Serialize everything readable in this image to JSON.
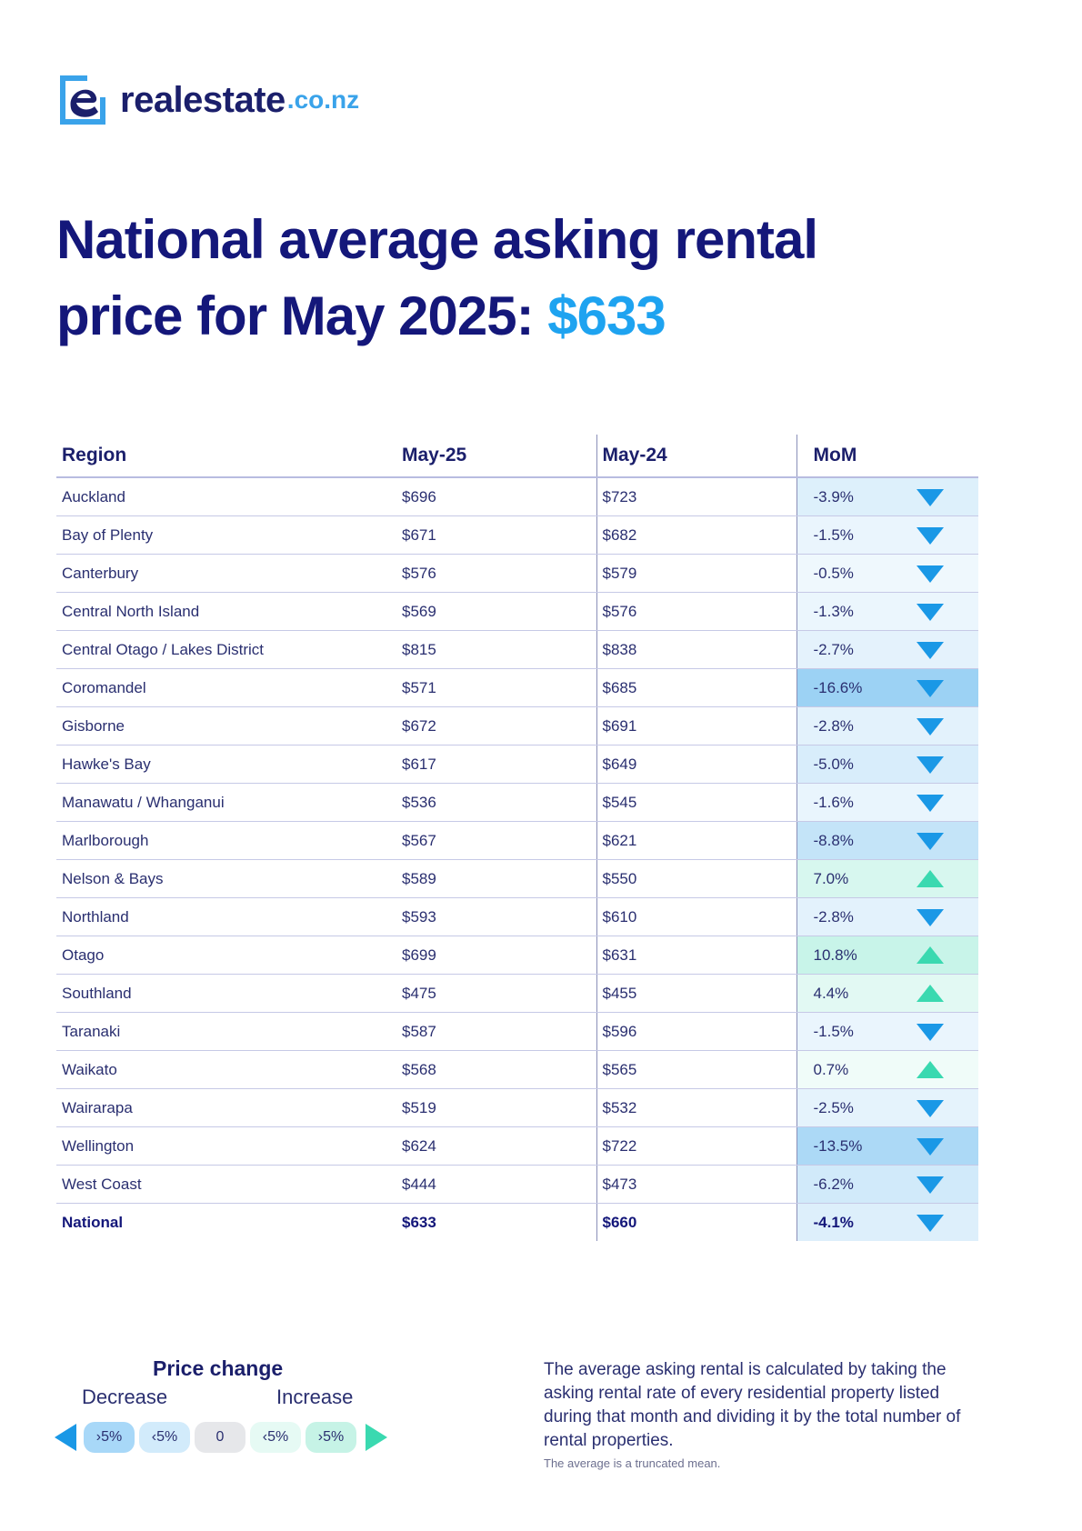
{
  "brand": {
    "name": "realestate",
    "suffix": ".co.nz",
    "color": "#1b1f6b",
    "accent": "#3aa3ea"
  },
  "headline": {
    "line1": "National average asking rental",
    "line2_prefix": "price for May 2025: ",
    "price": "$633"
  },
  "table": {
    "headers": {
      "region": "Region",
      "may25": "May-25",
      "may24": "May-24",
      "mom": "MoM"
    },
    "rows": [
      {
        "region": "Auckland",
        "may25": "$696",
        "may24": "$723",
        "mom": "-3.9%",
        "dir": "down"
      },
      {
        "region": "Bay of Plenty",
        "may25": "$671",
        "may24": "$682",
        "mom": "-1.5%",
        "dir": "down"
      },
      {
        "region": "Canterbury",
        "may25": "$576",
        "may24": "$579",
        "mom": "-0.5%",
        "dir": "down"
      },
      {
        "region": "Central North Island",
        "may25": "$569",
        "may24": "$576",
        "mom": "-1.3%",
        "dir": "down"
      },
      {
        "region": "Central Otago / Lakes District",
        "may25": "$815",
        "may24": "$838",
        "mom": "-2.7%",
        "dir": "down"
      },
      {
        "region": "Coromandel",
        "may25": "$571",
        "may24": "$685",
        "mom": "-16.6%",
        "dir": "down"
      },
      {
        "region": "Gisborne",
        "may25": "$672",
        "may24": "$691",
        "mom": "-2.8%",
        "dir": "down"
      },
      {
        "region": "Hawke's Bay",
        "may25": "$617",
        "may24": "$649",
        "mom": "-5.0%",
        "dir": "down"
      },
      {
        "region": "Manawatu / Whanganui",
        "may25": "$536",
        "may24": "$545",
        "mom": "-1.6%",
        "dir": "down"
      },
      {
        "region": "Marlborough",
        "may25": "$567",
        "may24": "$621",
        "mom": "-8.8%",
        "dir": "down"
      },
      {
        "region": "Nelson & Bays",
        "may25": "$589",
        "may24": "$550",
        "mom": "7.0%",
        "dir": "up"
      },
      {
        "region": "Northland",
        "may25": "$593",
        "may24": "$610",
        "mom": "-2.8%",
        "dir": "down"
      },
      {
        "region": "Otago",
        "may25": "$699",
        "may24": "$631",
        "mom": "10.8%",
        "dir": "up"
      },
      {
        "region": "Southland",
        "may25": "$475",
        "may24": "$455",
        "mom": "4.4%",
        "dir": "up"
      },
      {
        "region": "Taranaki",
        "may25": "$587",
        "may24": "$596",
        "mom": "-1.5%",
        "dir": "down"
      },
      {
        "region": "Waikato",
        "may25": "$568",
        "may24": "$565",
        "mom": "0.7%",
        "dir": "up"
      },
      {
        "region": "Wairarapa",
        "may25": "$519",
        "may24": "$532",
        "mom": "-2.5%",
        "dir": "down"
      },
      {
        "region": "Wellington",
        "may25": "$624",
        "may24": "$722",
        "mom": "-13.5%",
        "dir": "down"
      },
      {
        "region": "West Coast",
        "may25": "$444",
        "may24": "$473",
        "mom": "-6.2%",
        "dir": "down"
      },
      {
        "region": "National",
        "may25": "$633",
        "may24": "$660",
        "mom": "-4.1%",
        "dir": "down",
        "bold": true
      }
    ]
  },
  "legend": {
    "title": "Price change",
    "decrease_label": "Decrease",
    "increase_label": "Increase",
    "pills": [
      "›5%",
      "‹5%",
      "0",
      "‹5%",
      "›5%"
    ],
    "colors": {
      "down": "#1a98e6",
      "up": "#3ad9b0",
      "neutral": "#e6e7ea"
    }
  },
  "note": {
    "text": "The average asking rental is calculated by taking the asking rental rate of every residential property listed during that month and dividing it by the total number of rental properties.",
    "small": "The average is a truncated mean."
  }
}
